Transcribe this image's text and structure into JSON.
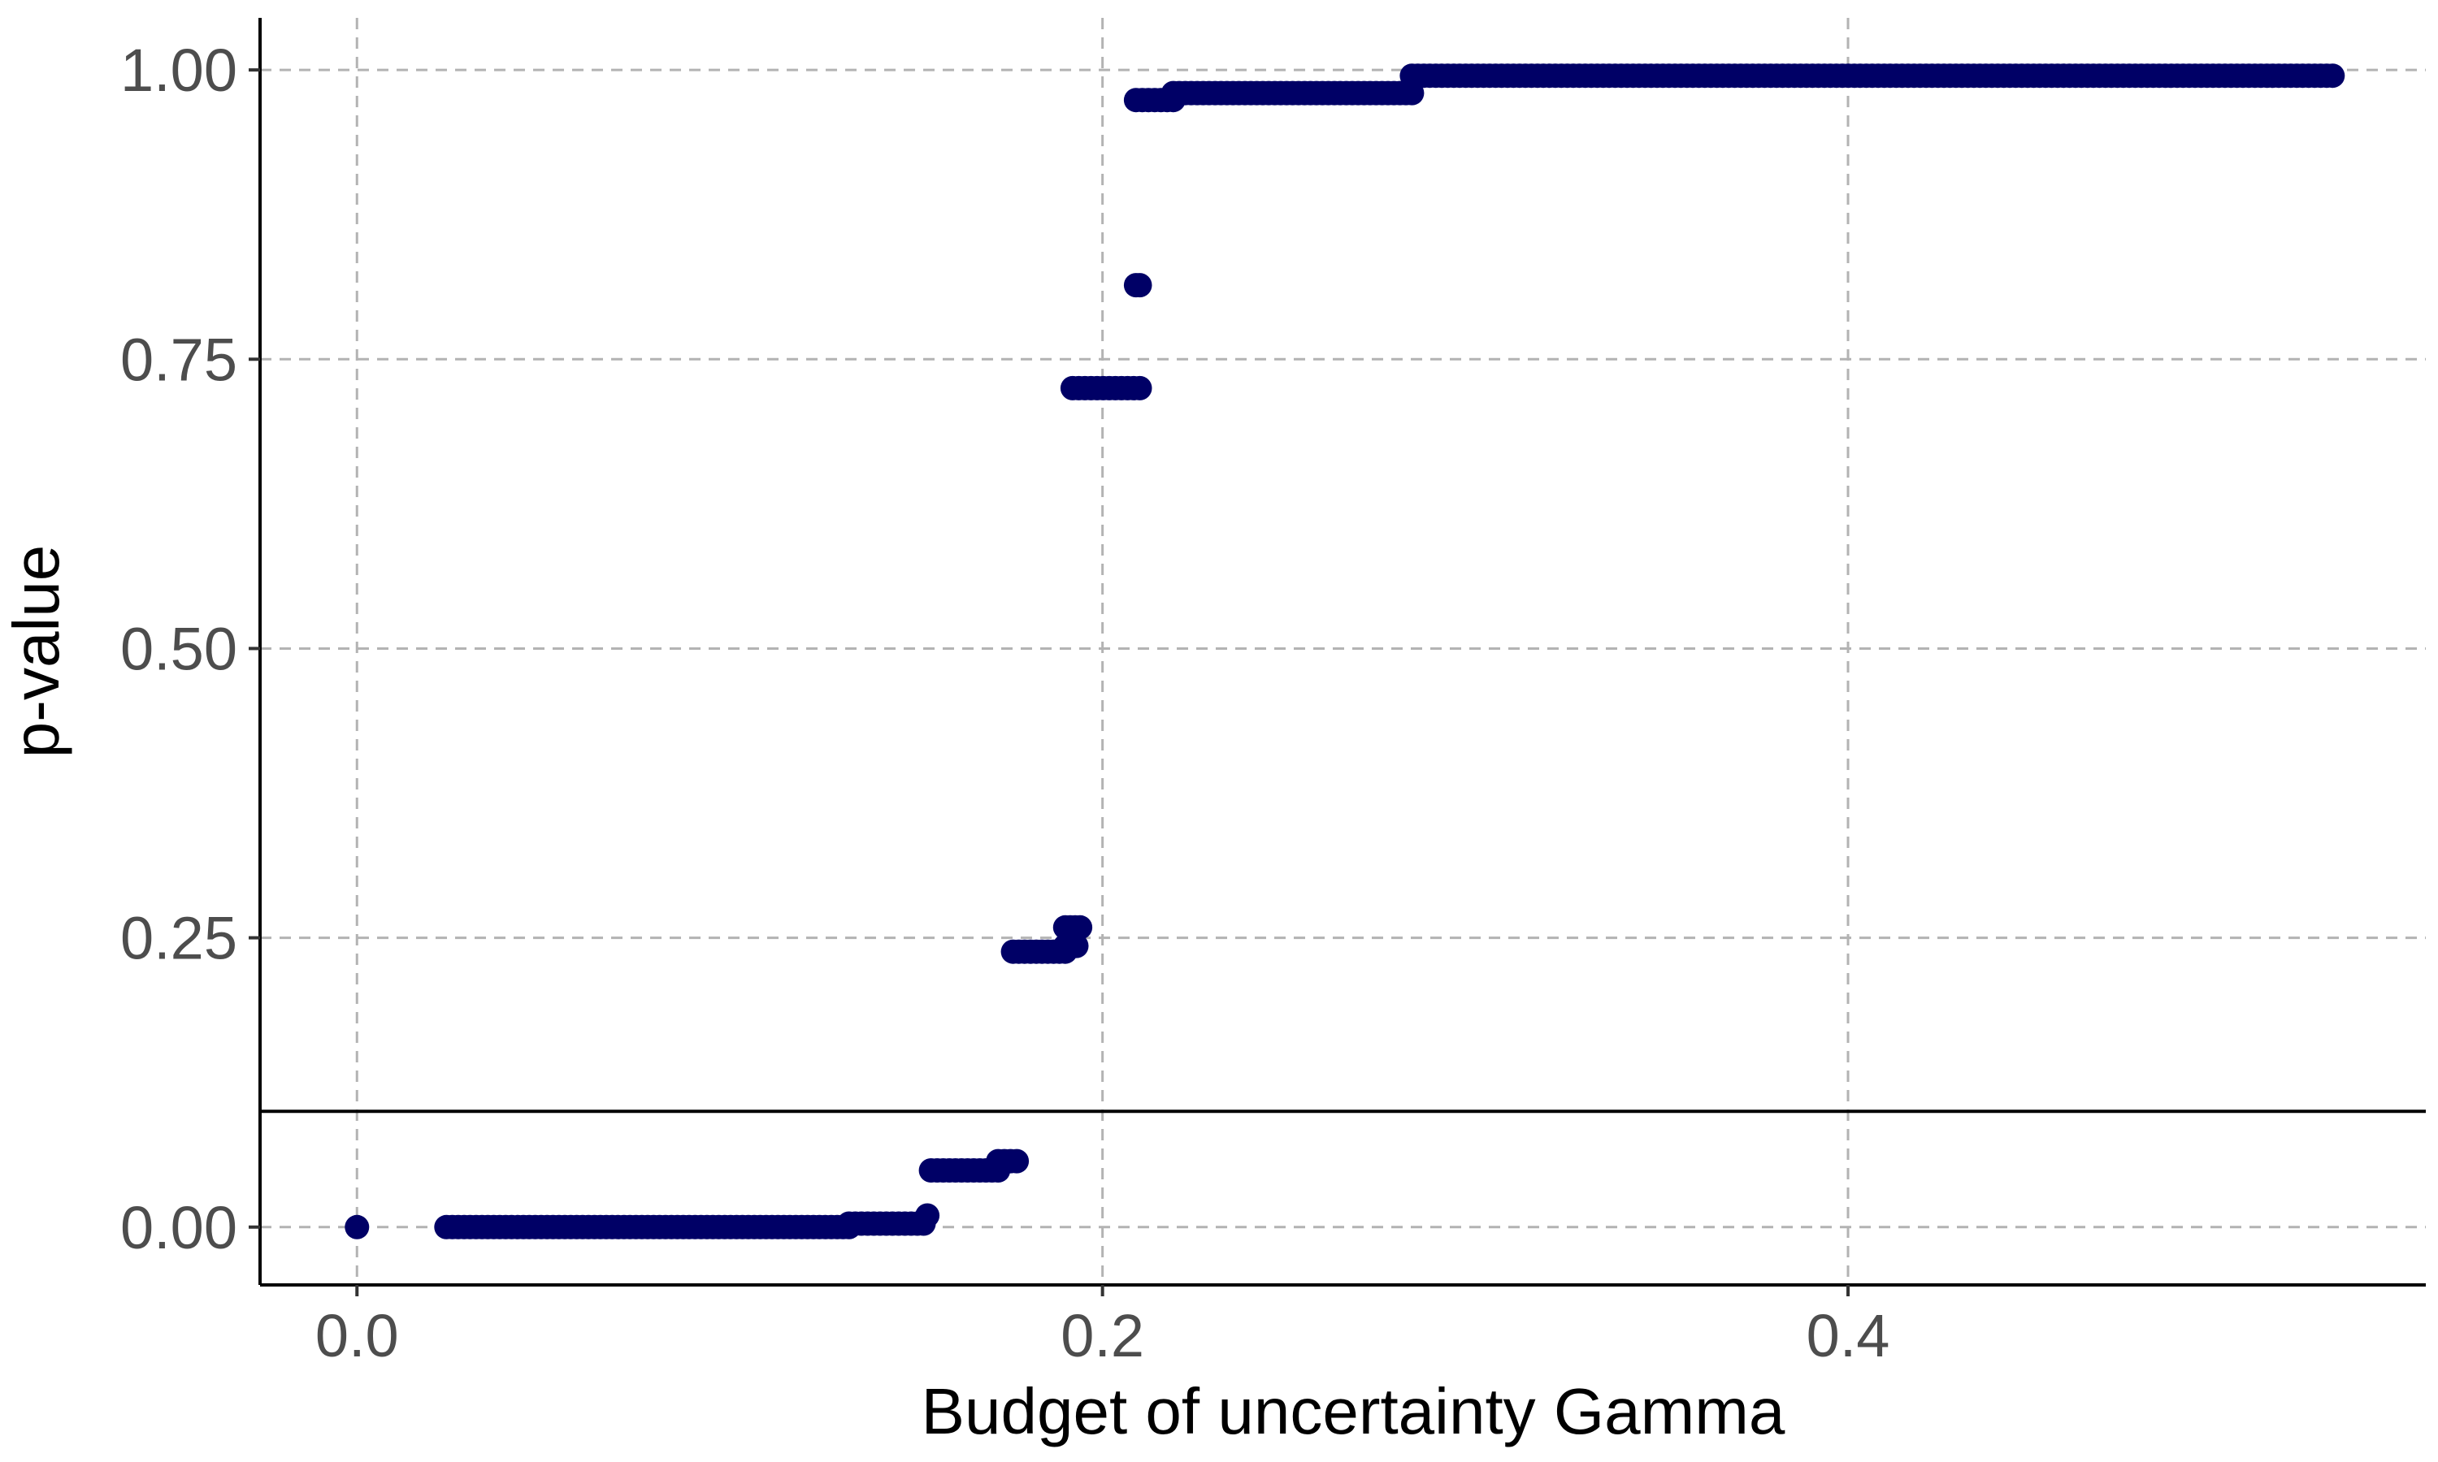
{
  "chart_data": {
    "type": "scatter",
    "title": "",
    "xlabel": "Budget of uncertainty Gamma",
    "ylabel": "p-value",
    "xlim": [
      -0.026,
      0.555
    ],
    "ylim": [
      -0.05,
      1.045
    ],
    "x_ticks": [
      0.0,
      0.2,
      0.4
    ],
    "x_tick_labels": [
      "0.0",
      "0.2",
      "0.4"
    ],
    "y_ticks": [
      0.0,
      0.25,
      0.5,
      0.75,
      1.0
    ],
    "y_tick_labels": [
      "0.00",
      "0.25",
      "0.50",
      "0.75",
      "1.00"
    ],
    "grid": "dashed",
    "legend": "none",
    "reference_line": {
      "y": 0.1
    },
    "point_color": "#000066",
    "segments": [
      {
        "x_from": 0.0,
        "x_to": 0.0,
        "y": 0.0
      },
      {
        "x_from": 0.024,
        "x_to": 0.132,
        "y": 0.0
      },
      {
        "x_from": 0.132,
        "x_to": 0.152,
        "y": 0.003
      },
      {
        "x_from": 0.153,
        "x_to": 0.153,
        "y": 0.01
      },
      {
        "x_from": 0.154,
        "x_to": 0.172,
        "y": 0.049
      },
      {
        "x_from": 0.172,
        "x_to": 0.177,
        "y": 0.057
      },
      {
        "x_from": 0.176,
        "x_to": 0.19,
        "y": 0.238
      },
      {
        "x_from": 0.19,
        "x_to": 0.193,
        "y": 0.243
      },
      {
        "x_from": 0.19,
        "x_to": 0.194,
        "y": 0.259
      },
      {
        "x_from": 0.192,
        "x_to": 0.21,
        "y": 0.725
      },
      {
        "x_from": 0.209,
        "x_to": 0.21,
        "y": 0.814
      },
      {
        "x_from": 0.209,
        "x_to": 0.219,
        "y": 0.974
      },
      {
        "x_from": 0.219,
        "x_to": 0.283,
        "y": 0.98
      },
      {
        "x_from": 0.283,
        "x_to": 0.53,
        "y": 0.995
      }
    ]
  }
}
